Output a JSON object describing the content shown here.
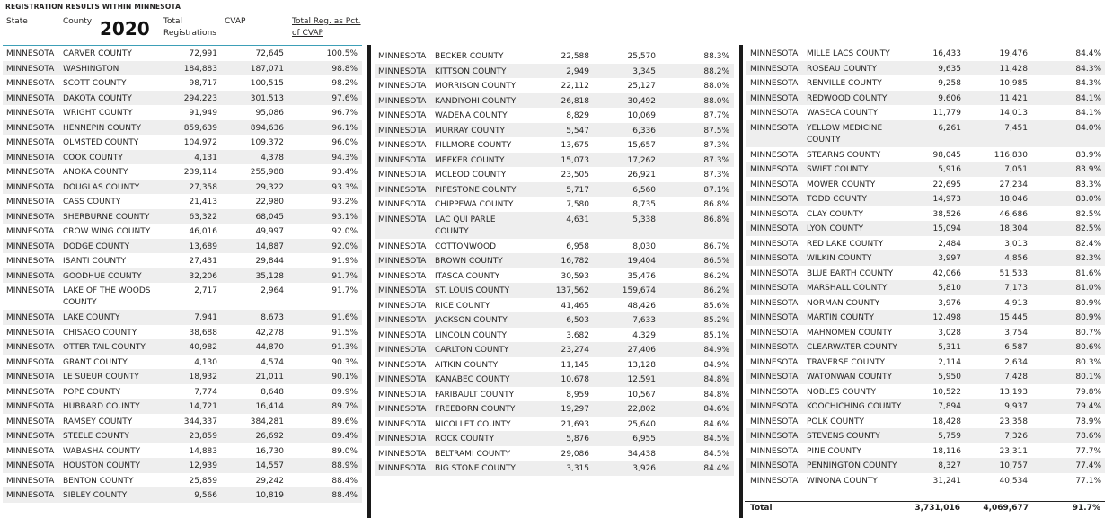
{
  "header": {
    "report_title": "REGISTRATION RESULTS WITHIN MINNESOTA",
    "year": "2020",
    "col_state": "State",
    "col_county": "County",
    "col_total_line1": "Total",
    "col_total_line2": "Registrations",
    "col_cvap": "CVAP",
    "col_pct_line1": "Total Reg. as Pct.",
    "col_pct_line2": "of CVAP"
  },
  "columns": [
    [
      {
        "state": "MINNESOTA",
        "county": "CARVER COUNTY",
        "total": "72,991",
        "cvap": "72,645",
        "pct": "100.5%"
      },
      {
        "state": "MINNESOTA",
        "county": "WASHINGTON",
        "total": "184,883",
        "cvap": "187,071",
        "pct": "98.8%"
      },
      {
        "state": "MINNESOTA",
        "county": "SCOTT COUNTY",
        "total": "98,717",
        "cvap": "100,515",
        "pct": "98.2%"
      },
      {
        "state": "MINNESOTA",
        "county": "DAKOTA COUNTY",
        "total": "294,223",
        "cvap": "301,513",
        "pct": "97.6%"
      },
      {
        "state": "MINNESOTA",
        "county": "WRIGHT COUNTY",
        "total": "91,949",
        "cvap": "95,086",
        "pct": "96.7%"
      },
      {
        "state": "MINNESOTA",
        "county": "HENNEPIN COUNTY",
        "total": "859,639",
        "cvap": "894,636",
        "pct": "96.1%"
      },
      {
        "state": "MINNESOTA",
        "county": "OLMSTED COUNTY",
        "total": "104,972",
        "cvap": "109,372",
        "pct": "96.0%"
      },
      {
        "state": "MINNESOTA",
        "county": "COOK COUNTY",
        "total": "4,131",
        "cvap": "4,378",
        "pct": "94.3%"
      },
      {
        "state": "MINNESOTA",
        "county": "ANOKA COUNTY",
        "total": "239,114",
        "cvap": "255,988",
        "pct": "93.4%"
      },
      {
        "state": "MINNESOTA",
        "county": "DOUGLAS COUNTY",
        "total": "27,358",
        "cvap": "29,322",
        "pct": "93.3%"
      },
      {
        "state": "MINNESOTA",
        "county": "CASS COUNTY",
        "total": "21,413",
        "cvap": "22,980",
        "pct": "93.2%"
      },
      {
        "state": "MINNESOTA",
        "county": "SHERBURNE COUNTY",
        "total": "63,322",
        "cvap": "68,045",
        "pct": "93.1%"
      },
      {
        "state": "MINNESOTA",
        "county": "CROW WING COUNTY",
        "total": "46,016",
        "cvap": "49,997",
        "pct": "92.0%"
      },
      {
        "state": "MINNESOTA",
        "county": "DODGE COUNTY",
        "total": "13,689",
        "cvap": "14,887",
        "pct": "92.0%"
      },
      {
        "state": "MINNESOTA",
        "county": "ISANTI COUNTY",
        "total": "27,431",
        "cvap": "29,844",
        "pct": "91.9%"
      },
      {
        "state": "MINNESOTA",
        "county": "GOODHUE COUNTY",
        "total": "32,206",
        "cvap": "35,128",
        "pct": "91.7%"
      },
      {
        "state": "MINNESOTA",
        "county": "LAKE OF THE WOODS COUNTY",
        "total": "2,717",
        "cvap": "2,964",
        "pct": "91.7%"
      },
      {
        "state": "MINNESOTA",
        "county": "LAKE COUNTY",
        "total": "7,941",
        "cvap": "8,673",
        "pct": "91.6%"
      },
      {
        "state": "MINNESOTA",
        "county": "CHISAGO COUNTY",
        "total": "38,688",
        "cvap": "42,278",
        "pct": "91.5%"
      },
      {
        "state": "MINNESOTA",
        "county": "OTTER TAIL COUNTY",
        "total": "40,982",
        "cvap": "44,870",
        "pct": "91.3%"
      },
      {
        "state": "MINNESOTA",
        "county": "GRANT COUNTY",
        "total": "4,130",
        "cvap": "4,574",
        "pct": "90.3%"
      },
      {
        "state": "MINNESOTA",
        "county": "LE SUEUR COUNTY",
        "total": "18,932",
        "cvap": "21,011",
        "pct": "90.1%"
      },
      {
        "state": "MINNESOTA",
        "county": "POPE COUNTY",
        "total": "7,774",
        "cvap": "8,648",
        "pct": "89.9%"
      },
      {
        "state": "MINNESOTA",
        "county": "HUBBARD COUNTY",
        "total": "14,721",
        "cvap": "16,414",
        "pct": "89.7%"
      },
      {
        "state": "MINNESOTA",
        "county": "RAMSEY COUNTY",
        "total": "344,337",
        "cvap": "384,281",
        "pct": "89.6%"
      },
      {
        "state": "MINNESOTA",
        "county": "STEELE COUNTY",
        "total": "23,859",
        "cvap": "26,692",
        "pct": "89.4%"
      },
      {
        "state": "MINNESOTA",
        "county": "WABASHA COUNTY",
        "total": "14,883",
        "cvap": "16,730",
        "pct": "89.0%"
      },
      {
        "state": "MINNESOTA",
        "county": "HOUSTON COUNTY",
        "total": "12,939",
        "cvap": "14,557",
        "pct": "88.9%"
      },
      {
        "state": "MINNESOTA",
        "county": "BENTON COUNTY",
        "total": "25,859",
        "cvap": "29,242",
        "pct": "88.4%"
      },
      {
        "state": "MINNESOTA",
        "county": "SIBLEY COUNTY",
        "total": "9,566",
        "cvap": "10,819",
        "pct": "88.4%"
      }
    ],
    [
      {
        "state": "MINNESOTA",
        "county": "BECKER COUNTY",
        "total": "22,588",
        "cvap": "25,570",
        "pct": "88.3%"
      },
      {
        "state": "MINNESOTA",
        "county": "KITTSON COUNTY",
        "total": "2,949",
        "cvap": "3,345",
        "pct": "88.2%"
      },
      {
        "state": "MINNESOTA",
        "county": "MORRISON COUNTY",
        "total": "22,112",
        "cvap": "25,127",
        "pct": "88.0%"
      },
      {
        "state": "MINNESOTA",
        "county": "KANDIYOHI COUNTY",
        "total": "26,818",
        "cvap": "30,492",
        "pct": "88.0%"
      },
      {
        "state": "MINNESOTA",
        "county": "WADENA COUNTY",
        "total": "8,829",
        "cvap": "10,069",
        "pct": "87.7%"
      },
      {
        "state": "MINNESOTA",
        "county": "MURRAY COUNTY",
        "total": "5,547",
        "cvap": "6,336",
        "pct": "87.5%"
      },
      {
        "state": "MINNESOTA",
        "county": "FILLMORE COUNTY",
        "total": "13,675",
        "cvap": "15,657",
        "pct": "87.3%"
      },
      {
        "state": "MINNESOTA",
        "county": "MEEKER COUNTY",
        "total": "15,073",
        "cvap": "17,262",
        "pct": "87.3%"
      },
      {
        "state": "MINNESOTA",
        "county": "MCLEOD COUNTY",
        "total": "23,505",
        "cvap": "26,921",
        "pct": "87.3%"
      },
      {
        "state": "MINNESOTA",
        "county": "PIPESTONE COUNTY",
        "total": "5,717",
        "cvap": "6,560",
        "pct": "87.1%"
      },
      {
        "state": "MINNESOTA",
        "county": "CHIPPEWA COUNTY",
        "total": "7,580",
        "cvap": "8,735",
        "pct": "86.8%"
      },
      {
        "state": "MINNESOTA",
        "county": "LAC QUI PARLE COUNTY",
        "total": "4,631",
        "cvap": "5,338",
        "pct": "86.8%"
      },
      {
        "state": "MINNESOTA",
        "county": "COTTONWOOD COUNTY",
        "total": "6,958",
        "cvap": "8,030",
        "pct": "86.7%"
      },
      {
        "state": "MINNESOTA",
        "county": "BROWN COUNTY",
        "total": "16,782",
        "cvap": "19,404",
        "pct": "86.5%"
      },
      {
        "state": "MINNESOTA",
        "county": "ITASCA COUNTY",
        "total": "30,593",
        "cvap": "35,476",
        "pct": "86.2%"
      },
      {
        "state": "MINNESOTA",
        "county": "ST. LOUIS COUNTY",
        "total": "137,562",
        "cvap": "159,674",
        "pct": "86.2%"
      },
      {
        "state": "MINNESOTA",
        "county": "RICE COUNTY",
        "total": "41,465",
        "cvap": "48,426",
        "pct": "85.6%"
      },
      {
        "state": "MINNESOTA",
        "county": "JACKSON COUNTY",
        "total": "6,503",
        "cvap": "7,633",
        "pct": "85.2%"
      },
      {
        "state": "MINNESOTA",
        "county": "LINCOLN COUNTY",
        "total": "3,682",
        "cvap": "4,329",
        "pct": "85.1%"
      },
      {
        "state": "MINNESOTA",
        "county": "CARLTON COUNTY",
        "total": "23,274",
        "cvap": "27,406",
        "pct": "84.9%"
      },
      {
        "state": "MINNESOTA",
        "county": "AITKIN COUNTY",
        "total": "11,145",
        "cvap": "13,128",
        "pct": "84.9%"
      },
      {
        "state": "MINNESOTA",
        "county": "KANABEC COUNTY",
        "total": "10,678",
        "cvap": "12,591",
        "pct": "84.8%"
      },
      {
        "state": "MINNESOTA",
        "county": "FARIBAULT COUNTY",
        "total": "8,959",
        "cvap": "10,567",
        "pct": "84.8%"
      },
      {
        "state": "MINNESOTA",
        "county": "FREEBORN COUNTY",
        "total": "19,297",
        "cvap": "22,802",
        "pct": "84.6%"
      },
      {
        "state": "MINNESOTA",
        "county": "NICOLLET COUNTY",
        "total": "21,693",
        "cvap": "25,640",
        "pct": "84.6%"
      },
      {
        "state": "MINNESOTA",
        "county": "ROCK COUNTY",
        "total": "5,876",
        "cvap": "6,955",
        "pct": "84.5%"
      },
      {
        "state": "MINNESOTA",
        "county": "BELTRAMI COUNTY",
        "total": "29,086",
        "cvap": "34,438",
        "pct": "84.5%"
      },
      {
        "state": "MINNESOTA",
        "county": "BIG STONE COUNTY",
        "total": "3,315",
        "cvap": "3,926",
        "pct": "84.4%"
      }
    ],
    [
      {
        "state": "MINNESOTA",
        "county": "MILLE LACS COUNTY",
        "total": "16,433",
        "cvap": "19,476",
        "pct": "84.4%"
      },
      {
        "state": "MINNESOTA",
        "county": "ROSEAU COUNTY",
        "total": "9,635",
        "cvap": "11,428",
        "pct": "84.3%"
      },
      {
        "state": "MINNESOTA",
        "county": "RENVILLE COUNTY",
        "total": "9,258",
        "cvap": "10,985",
        "pct": "84.3%"
      },
      {
        "state": "MINNESOTA",
        "county": "REDWOOD COUNTY",
        "total": "9,606",
        "cvap": "11,421",
        "pct": "84.1%"
      },
      {
        "state": "MINNESOTA",
        "county": "WASECA COUNTY",
        "total": "11,779",
        "cvap": "14,013",
        "pct": "84.1%"
      },
      {
        "state": "MINNESOTA",
        "county": "YELLOW MEDICINE COUNTY",
        "total": "6,261",
        "cvap": "7,451",
        "pct": "84.0%"
      },
      {
        "state": "MINNESOTA",
        "county": "STEARNS COUNTY",
        "total": "98,045",
        "cvap": "116,830",
        "pct": "83.9%"
      },
      {
        "state": "MINNESOTA",
        "county": "SWIFT COUNTY",
        "total": "5,916",
        "cvap": "7,051",
        "pct": "83.9%"
      },
      {
        "state": "MINNESOTA",
        "county": "MOWER COUNTY",
        "total": "22,695",
        "cvap": "27,234",
        "pct": "83.3%"
      },
      {
        "state": "MINNESOTA",
        "county": "TODD COUNTY",
        "total": "14,973",
        "cvap": "18,046",
        "pct": "83.0%"
      },
      {
        "state": "MINNESOTA",
        "county": "CLAY COUNTY",
        "total": "38,526",
        "cvap": "46,686",
        "pct": "82.5%"
      },
      {
        "state": "MINNESOTA",
        "county": "LYON COUNTY",
        "total": "15,094",
        "cvap": "18,304",
        "pct": "82.5%"
      },
      {
        "state": "MINNESOTA",
        "county": "RED LAKE COUNTY",
        "total": "2,484",
        "cvap": "3,013",
        "pct": "82.4%"
      },
      {
        "state": "MINNESOTA",
        "county": "WILKIN COUNTY",
        "total": "3,997",
        "cvap": "4,856",
        "pct": "82.3%"
      },
      {
        "state": "MINNESOTA",
        "county": "BLUE EARTH COUNTY",
        "total": "42,066",
        "cvap": "51,533",
        "pct": "81.6%"
      },
      {
        "state": "MINNESOTA",
        "county": "MARSHALL COUNTY",
        "total": "5,810",
        "cvap": "7,173",
        "pct": "81.0%"
      },
      {
        "state": "MINNESOTA",
        "county": "NORMAN COUNTY",
        "total": "3,976",
        "cvap": "4,913",
        "pct": "80.9%"
      },
      {
        "state": "MINNESOTA",
        "county": "MARTIN COUNTY",
        "total": "12,498",
        "cvap": "15,445",
        "pct": "80.9%"
      },
      {
        "state": "MINNESOTA",
        "county": "MAHNOMEN COUNTY",
        "total": "3,028",
        "cvap": "3,754",
        "pct": "80.7%"
      },
      {
        "state": "MINNESOTA",
        "county": "CLEARWATER COUNTY",
        "total": "5,311",
        "cvap": "6,587",
        "pct": "80.6%"
      },
      {
        "state": "MINNESOTA",
        "county": "TRAVERSE COUNTY",
        "total": "2,114",
        "cvap": "2,634",
        "pct": "80.3%"
      },
      {
        "state": "MINNESOTA",
        "county": "WATONWAN COUNTY",
        "total": "5,950",
        "cvap": "7,428",
        "pct": "80.1%"
      },
      {
        "state": "MINNESOTA",
        "county": "NOBLES COUNTY",
        "total": "10,522",
        "cvap": "13,193",
        "pct": "79.8%"
      },
      {
        "state": "MINNESOTA",
        "county": "KOOCHICHING COUNTY",
        "total": "7,894",
        "cvap": "9,937",
        "pct": "79.4%"
      },
      {
        "state": "MINNESOTA",
        "county": "POLK COUNTY",
        "total": "18,428",
        "cvap": "23,358",
        "pct": "78.9%"
      },
      {
        "state": "MINNESOTA",
        "county": "STEVENS COUNTY",
        "total": "5,759",
        "cvap": "7,326",
        "pct": "78.6%"
      },
      {
        "state": "MINNESOTA",
        "county": "PINE COUNTY",
        "total": "18,116",
        "cvap": "23,311",
        "pct": "77.7%"
      },
      {
        "state": "MINNESOTA",
        "county": "PENNINGTON COUNTY",
        "total": "8,327",
        "cvap": "10,757",
        "pct": "77.4%"
      },
      {
        "state": "MINNESOTA",
        "county": "WINONA COUNTY",
        "total": "31,241",
        "cvap": "40,534",
        "pct": "77.1%"
      }
    ]
  ],
  "totals": {
    "label": "Total",
    "total": "3,731,016",
    "cvap": "4,069,677",
    "pct": "91.7%"
  }
}
